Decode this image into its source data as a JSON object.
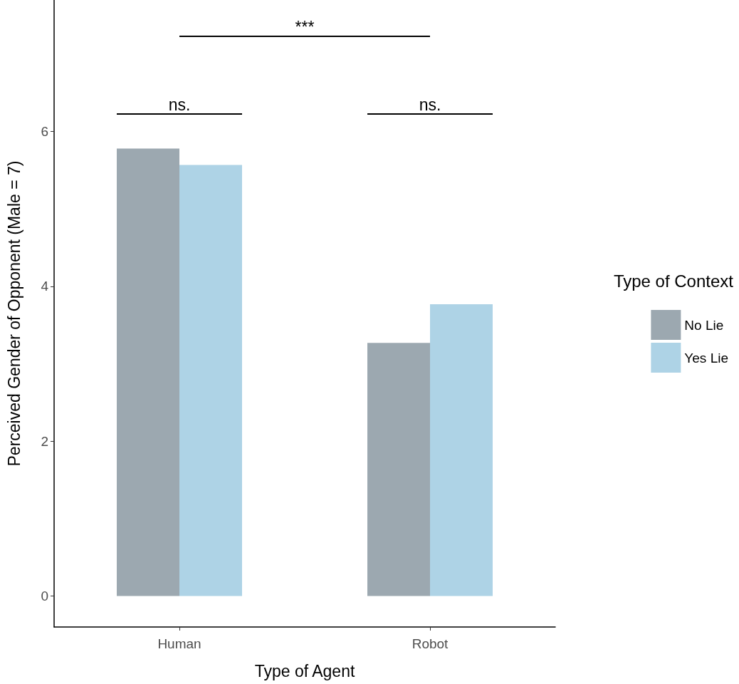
{
  "chart_data": {
    "type": "bar",
    "xlabel": "Type of Agent",
    "ylabel": "Perceived Gender of Opponent (Male = 7)",
    "legend_title": "Type of Context",
    "categories": [
      "Human",
      "Robot"
    ],
    "series": [
      {
        "name": "No Lie",
        "color": "#9ca8b0",
        "values": [
          5.78,
          3.27
        ]
      },
      {
        "name": "Yes Lie",
        "color": "#aed3e6",
        "values": [
          5.57,
          3.77
        ]
      }
    ],
    "ylim": [
      -0.4,
      7.7
    ],
    "yticks": [
      0,
      2,
      4,
      6
    ],
    "grid": false,
    "legend": "right",
    "annotations": [
      "***",
      "ns.",
      "ns."
    ]
  }
}
